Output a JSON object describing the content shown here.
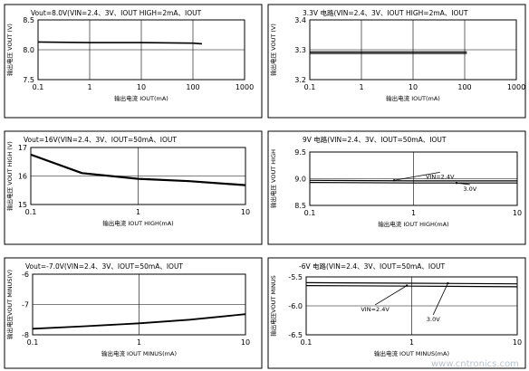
{
  "chart_data": [
    {
      "type": "line",
      "title": "Vout=8.0V(VIN=2.4、3V、IOUT HIGH=2mA、IOUT",
      "xlabel": "输出电流 IOUT(mA)",
      "ylabel": "输出电压 VOUT (V)",
      "xscale": "log",
      "xlim": [
        0.1,
        1000
      ],
      "ylim": [
        7.5,
        8.5
      ],
      "x_ticks": [
        "0.1",
        "1",
        "10",
        "100",
        "1000"
      ],
      "y_ticks": [
        "7.5",
        "8.0",
        "8.5"
      ],
      "grid": true,
      "series": [
        {
          "x": [
            0.1,
            1,
            10,
            100,
            150
          ],
          "y": [
            8.13,
            8.12,
            8.12,
            8.11,
            8.1
          ],
          "width": 1.6
        }
      ],
      "annotations": []
    },
    {
      "type": "line",
      "title": "3.3V 电路(VIN=2.4、3V、IOUT HIGH=2mA、IOUT",
      "xlabel": "输出电流 IOUT(mA)",
      "ylabel": "输出电压 VOUT (V)",
      "xscale": "log",
      "xlim": [
        0.1,
        1000
      ],
      "ylim": [
        3.2,
        3.4
      ],
      "x_ticks": [
        "0.1",
        "1",
        "10",
        "100",
        "1000"
      ],
      "y_ticks": [
        "3.2",
        "3.3",
        "3.4"
      ],
      "grid": true,
      "series": [
        {
          "x": [
            0.1,
            1,
            10,
            100,
            110
          ],
          "y": [
            3.293,
            3.293,
            3.293,
            3.293,
            3.293
          ],
          "width": 1.2
        },
        {
          "x": [
            0.1,
            1,
            10,
            100,
            110
          ],
          "y": [
            3.288,
            3.288,
            3.288,
            3.288,
            3.288
          ],
          "width": 1.2
        }
      ],
      "annotations": []
    },
    {
      "type": "line",
      "title": "Vout=16V(VIN=2.4、3V、IOUT=50mA、IOUT",
      "xlabel": "输出电流 IOUT HIGH(mA)",
      "ylabel": "输出电压 VOUT HIGH (V)",
      "xscale": "log",
      "xlim": [
        0.1,
        10
      ],
      "ylim": [
        15,
        17
      ],
      "x_ticks": [
        "0.1",
        "1",
        "10"
      ],
      "y_ticks": [
        "15",
        "16",
        "17"
      ],
      "grid": true,
      "series": [
        {
          "x": [
            0.1,
            0.3,
            1,
            3,
            10
          ],
          "y": [
            16.75,
            16.1,
            15.9,
            15.82,
            15.68
          ],
          "width": 2.2
        }
      ],
      "annotations": []
    },
    {
      "type": "line",
      "title": "9V 电路(VIN=2.4、3V、IOUT=50mA、IOUT",
      "xlabel": "输出电流 IOUT HIGH(mA)",
      "ylabel": "输出电压 VOUT HIGH",
      "xscale": "log",
      "xlim": [
        0.1,
        10
      ],
      "ylim": [
        8.5,
        9.5
      ],
      "x_ticks": [
        "0.1",
        "1",
        "10"
      ],
      "y_ticks": [
        "8.5",
        "9.0",
        "9.5"
      ],
      "grid": true,
      "series": [
        {
          "x": [
            0.1,
            1,
            10
          ],
          "y": [
            8.97,
            8.96,
            8.96
          ],
          "width": 1.2
        },
        {
          "x": [
            0.1,
            1,
            10
          ],
          "y": [
            8.93,
            8.92,
            8.92
          ],
          "width": 1.2
        }
      ],
      "annotations": [
        {
          "text": "VIN=2.4V",
          "x": 1.8,
          "y": 9.07,
          "ax": 0.65,
          "ay": 8.97
        },
        {
          "text": "3.0V",
          "x": 3.5,
          "y": 8.84,
          "ax": 2.6,
          "ay": 8.92
        }
      ]
    },
    {
      "type": "line",
      "title": "Vout=-7.0V(VIN=2.4、3V、IOUT=50mA、IOUT",
      "xlabel": "输出电流 IOUT MINUS(mA)",
      "ylabel": "输出电压VOUT MINUS(V)",
      "xscale": "log",
      "xlim": [
        0.1,
        10
      ],
      "ylim": [
        -8,
        -6
      ],
      "x_ticks": [
        "0.1",
        "1",
        "10"
      ],
      "y_ticks": [
        "-6",
        "-7",
        "-8"
      ],
      "grid": true,
      "series": [
        {
          "x": [
            0.1,
            0.3,
            1,
            3,
            10
          ],
          "y": [
            -7.8,
            -7.72,
            -7.62,
            -7.5,
            -7.32
          ],
          "width": 1.8
        }
      ],
      "annotations": []
    },
    {
      "type": "line",
      "title": "-6V 电路(VIN=2.4、3V、IOUT=50mA、IOUT",
      "xlabel": "输出电流 IOUT MINUS(mA)",
      "ylabel": "输出电压VOUT MINUS",
      "xscale": "log",
      "xlim": [
        0.1,
        10
      ],
      "ylim": [
        -6.5,
        -5.5
      ],
      "x_ticks": [
        "0.1",
        "1",
        "10"
      ],
      "y_ticks": [
        "-5.5",
        "-6.0",
        "-6.5"
      ],
      "grid": true,
      "series": [
        {
          "x": [
            0.1,
            1,
            10
          ],
          "y": [
            -5.6,
            -5.61,
            -5.62
          ],
          "width": 1.2
        },
        {
          "x": [
            0.1,
            1,
            10
          ],
          "y": [
            -5.65,
            -5.66,
            -5.67
          ],
          "width": 1.2
        }
      ],
      "annotations": [
        {
          "text": "VIN=2.4V",
          "x": 0.45,
          "y": -6.03,
          "ax": 0.9,
          "ay": -5.65
        },
        {
          "text": "3.0V",
          "x": 1.6,
          "y": -6.2,
          "ax": 2.2,
          "ay": -5.61
        }
      ]
    }
  ],
  "watermark": "www.cntronics.com"
}
